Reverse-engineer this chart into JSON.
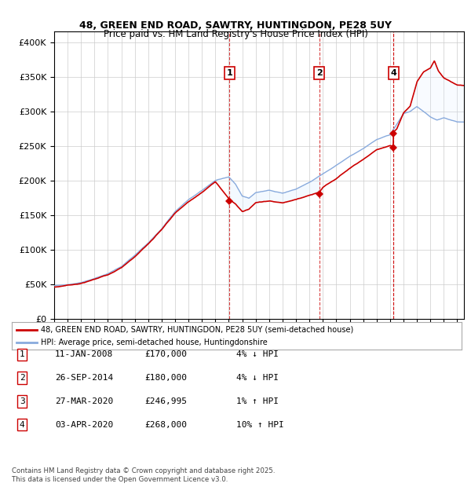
{
  "title_line1": "48, GREEN END ROAD, SAWTRY, HUNTINGDON, PE28 5UY",
  "title_line2": "Price paid vs. HM Land Registry's House Price Index (HPI)",
  "ytick_values": [
    0,
    50000,
    100000,
    150000,
    200000,
    250000,
    300000,
    350000,
    400000
  ],
  "ytick_labels": [
    "£0",
    "£50K",
    "£100K",
    "£150K",
    "£200K",
    "£250K",
    "£300K",
    "£350K",
    "£400K"
  ],
  "ylim": [
    0,
    415000
  ],
  "xlim_start": 1995.0,
  "xlim_end": 2025.5,
  "background_color": "#ffffff",
  "plot_bg_color": "#ffffff",
  "grid_color": "#cccccc",
  "hpi_line_color": "#88aadd",
  "price_line_color": "#cc0000",
  "annotation_line_color": "#cc0000",
  "shade_color": "#ddeeff",
  "sales": [
    {
      "num": 1,
      "date_label": "11-JAN-2008",
      "price": 170000,
      "year": 2008.04,
      "pct": "4%",
      "dir": "↓",
      "hpi_note": "HPI"
    },
    {
      "num": 2,
      "date_label": "26-SEP-2014",
      "price": 180000,
      "year": 2014.74,
      "pct": "4%",
      "dir": "↓",
      "hpi_note": "HPI"
    },
    {
      "num": 3,
      "date_label": "27-MAR-2020",
      "price": 246995,
      "year": 2020.24,
      "pct": "1%",
      "dir": "↑",
      "hpi_note": "HPI"
    },
    {
      "num": 4,
      "date_label": "03-APR-2020",
      "price": 268000,
      "year": 2020.26,
      "pct": "10%",
      "dir": "↑",
      "hpi_note": "HPI"
    }
  ],
  "legend_label_red": "48, GREEN END ROAD, SAWTRY, HUNTINGDON, PE28 5UY (semi-detached house)",
  "legend_label_blue": "HPI: Average price, semi-detached house, Huntingdonshire",
  "footer_line1": "Contains HM Land Registry data © Crown copyright and database right 2025.",
  "footer_line2": "This data is licensed under the Open Government Licence v3.0.",
  "table_rows": [
    [
      "1",
      "11-JAN-2008",
      "£170,000",
      "4% ↓ HPI"
    ],
    [
      "2",
      "26-SEP-2014",
      "£180,000",
      "4% ↓ HPI"
    ],
    [
      "3",
      "27-MAR-2020",
      "£246,995",
      "1% ↑ HPI"
    ],
    [
      "4",
      "03-APR-2020",
      "£268,000",
      "10% ↑ HPI"
    ]
  ]
}
